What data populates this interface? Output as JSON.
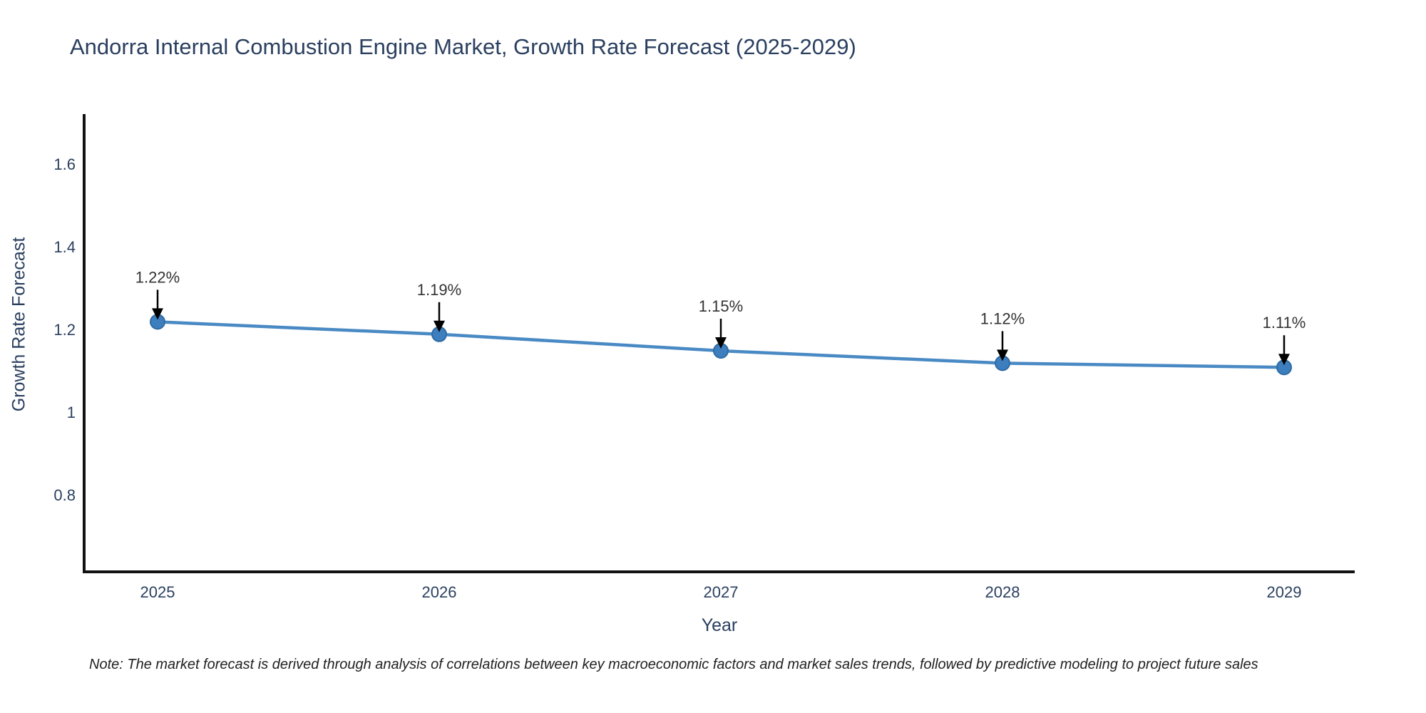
{
  "title": "Andorra Internal Combustion Engine Market, Growth Rate Forecast (2025-2029)",
  "note": "Note: The market forecast is derived through analysis of correlations between key macroeconomic factors and market sales trends, followed by predictive modeling to project future sales",
  "colors": {
    "title_text": "#2a3f5f",
    "tick_text": "#2a3f5f",
    "axis_line": "#111111",
    "series_line": "#4a8ac4",
    "marker_fill": "#3d7ebf",
    "marker_edge": "#2f6ba3",
    "annotation_text": "#333333",
    "annotation_arrow": "#000000",
    "note_text": "#222222",
    "background": "#ffffff"
  },
  "chart_data": {
    "type": "line",
    "title": "Andorra Internal Combustion Engine Market, Growth Rate Forecast (2025-2029)",
    "x": [
      2025,
      2026,
      2027,
      2028,
      2029
    ],
    "values": [
      1.22,
      1.19,
      1.15,
      1.12,
      1.11
    ],
    "point_labels": [
      "1.22%",
      "1.19%",
      "1.15%",
      "1.12%",
      "1.11%"
    ],
    "xtick_labels": [
      "2025",
      "2026",
      "2027",
      "2028",
      "2029"
    ],
    "yticks": [
      0.8,
      1.0,
      1.2,
      1.4,
      1.6
    ],
    "ytick_labels": [
      "0.8",
      "1",
      "1.2",
      "1.4",
      "1.6"
    ],
    "xlabel": "Year",
    "ylabel": "Growth Rate Forecast",
    "ylim": [
      0.615,
      1.725
    ],
    "xlim_years": [
      2024.74,
      2029.25
    ],
    "grid": false,
    "legend": false,
    "annotations": "value labels with downward arrows above each point"
  }
}
